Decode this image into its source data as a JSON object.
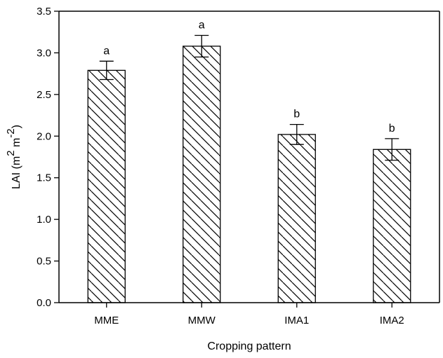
{
  "chart_data": {
    "type": "bar",
    "categories": [
      "MME",
      "MMW",
      "IMA1",
      "IMA2"
    ],
    "values": [
      2.79,
      3.08,
      2.02,
      1.84
    ],
    "errors": [
      0.11,
      0.13,
      0.12,
      0.13
    ],
    "significance_letters": [
      "a",
      "a",
      "b",
      "b"
    ],
    "title": "",
    "xlabel": "Cropping pattern",
    "ylabel": {
      "base": "LAI (m",
      "sup1": "2",
      "mid": " m",
      "sup2": "-2",
      "end": ")"
    },
    "ylim": [
      0,
      3.5
    ],
    "yticks": [
      "0.0",
      "0.5",
      "1.0",
      "1.5",
      "2.0",
      "2.5",
      "3.0",
      "3.5"
    ],
    "bar_fill": "hatched diagonal",
    "grid": false,
    "legend": "none",
    "colors": {
      "bar_stroke": "#000000",
      "hatch": "#000000",
      "background": "#ffffff"
    }
  }
}
